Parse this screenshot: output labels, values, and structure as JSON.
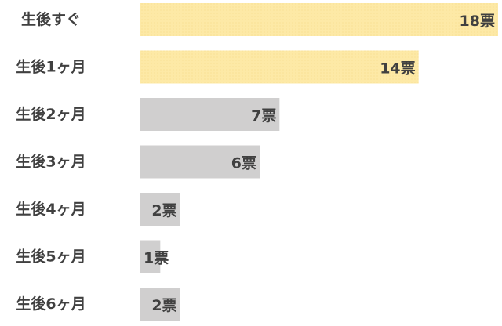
{
  "chart_data": {
    "type": "bar",
    "orientation": "horizontal",
    "title": "",
    "xlabel": "",
    "ylabel": "",
    "categories": [
      "生後すぐ",
      "生後1ヶ月",
      "生後2ヶ月",
      "生後3ヶ月",
      "生後4ヶ月",
      "生後5ヶ月",
      "生後6ヶ月"
    ],
    "values": [
      18,
      14,
      7,
      6,
      2,
      1,
      2
    ],
    "value_labels": [
      "18票",
      "14票",
      "7票",
      "6票",
      "2票",
      "1票",
      "2票"
    ],
    "highlight": [
      true,
      true,
      false,
      false,
      false,
      false,
      false
    ],
    "xlim": [
      0,
      18
    ],
    "grid": false,
    "legend": "none",
    "colors": {
      "highlight": "#fde9a6",
      "normal": "#d0cfcf",
      "axis": "#d9d9d9",
      "label": "#404040"
    }
  }
}
